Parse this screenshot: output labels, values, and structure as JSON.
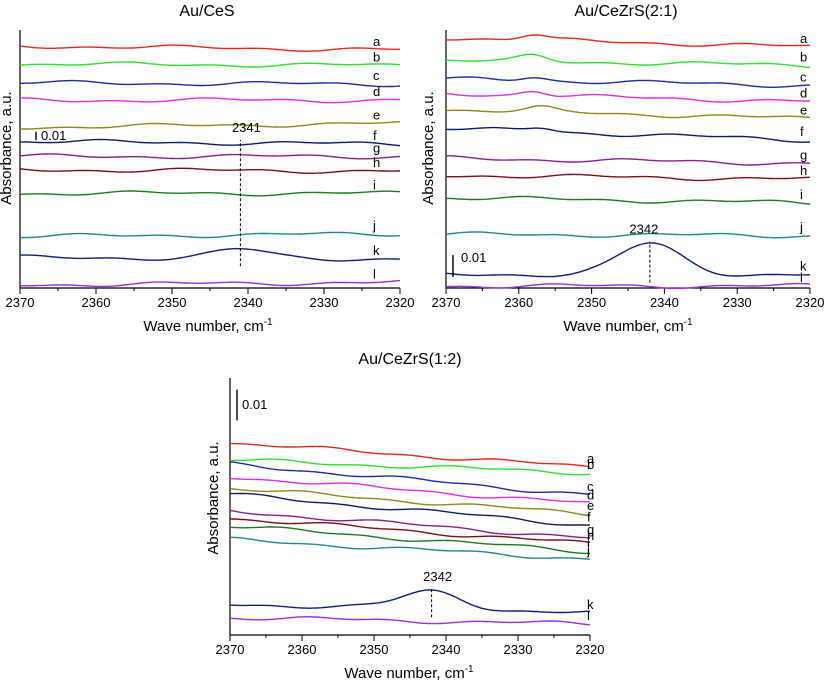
{
  "chart_data": [
    {
      "type": "line",
      "title": "Au/CeS",
      "xlabel": "Wave number, cm",
      "xlabel_sup": "-1",
      "ylabel": "Absorbance, a.u.",
      "xlim": [
        2370,
        2320
      ],
      "xticks": [
        "2370",
        "2360",
        "2350",
        "2340",
        "2330",
        "2320"
      ],
      "ylim": [
        0,
        1
      ],
      "scale_bar": {
        "label": "0.01",
        "value": 0.033
      },
      "annotation": {
        "label": "2341",
        "x": 2341,
        "on_series": "k"
      },
      "series": [
        {
          "name": "a",
          "color": "#e8261c",
          "offset": 0.938,
          "slope": -0.03,
          "features": []
        },
        {
          "name": "b",
          "color": "#2de02d",
          "offset": 0.868,
          "slope": -0.01,
          "features": []
        },
        {
          "name": "c",
          "color": "#1b2ca8",
          "offset": 0.795,
          "slope": -0.01,
          "features": []
        },
        {
          "name": "d",
          "color": "#e02de0",
          "offset": 0.728,
          "slope": 0.0,
          "features": []
        },
        {
          "name": "e",
          "color": "#8a8a1a",
          "offset": 0.623,
          "slope": 0.03,
          "features": []
        },
        {
          "name": "f",
          "color": "#0f1a6e",
          "offset": 0.568,
          "slope": -0.02,
          "features": []
        },
        {
          "name": "g",
          "color": "#8a1f8a",
          "offset": 0.51,
          "slope": 0.0,
          "features": []
        },
        {
          "name": "h",
          "color": "#7a1111",
          "offset": 0.458,
          "slope": -0.01,
          "features": []
        },
        {
          "name": "i",
          "color": "#1f7a1f",
          "offset": 0.367,
          "slope": 0.0,
          "features": []
        },
        {
          "name": "j",
          "color": "#1a8a8a",
          "offset": 0.2,
          "slope": 0.02,
          "features": []
        },
        {
          "name": "k",
          "color": "#101d80",
          "offset": 0.118,
          "slope": -0.01,
          "features": [
            {
              "center": 2341,
              "height": 0.035,
              "width": 5
            }
          ]
        },
        {
          "name": "l",
          "color": "#9a2de0",
          "offset": 0.012,
          "slope": 0.02,
          "features": []
        }
      ]
    },
    {
      "type": "line",
      "title": "Au/CeZrS(2:1)",
      "xlabel": "Wave number, cm",
      "xlabel_sup": "-1",
      "ylabel": "Absorbance, a.u.",
      "xlim": [
        2370,
        2320
      ],
      "xticks": [
        "2370",
        "2360",
        "2350",
        "2340",
        "2330",
        "2320"
      ],
      "ylim": [
        0,
        1
      ],
      "scale_bar": {
        "label": "0.01",
        "value": 0.085
      },
      "annotation": {
        "label": "2342",
        "x": 2342,
        "on_series": "k"
      },
      "series": [
        {
          "name": "a",
          "color": "#e8261c",
          "offset": 0.97,
          "slope": -0.07,
          "features": [
            {
              "center": 2358,
              "height": 0.02,
              "width": 2.5
            }
          ]
        },
        {
          "name": "b",
          "color": "#2de02d",
          "offset": 0.883,
          "slope": -0.04,
          "features": [
            {
              "center": 2358,
              "height": 0.02,
              "width": 2.5
            }
          ]
        },
        {
          "name": "c",
          "color": "#1b2ca8",
          "offset": 0.81,
          "slope": -0.05,
          "features": [
            {
              "center": 2358,
              "height": 0.015,
              "width": 2.5
            }
          ]
        },
        {
          "name": "d",
          "color": "#e02de0",
          "offset": 0.753,
          "slope": -0.06,
          "features": [
            {
              "center": 2358,
              "height": 0.02,
              "width": 2.5
            }
          ]
        },
        {
          "name": "e",
          "color": "#8a8a1a",
          "offset": 0.692,
          "slope": -0.07,
          "features": [
            {
              "center": 2357,
              "height": 0.015,
              "width": 2.5
            }
          ]
        },
        {
          "name": "f",
          "color": "#0f1a6e",
          "offset": 0.618,
          "slope": -0.09,
          "features": [
            {
              "center": 2357,
              "height": 0.015,
              "width": 2.5
            }
          ]
        },
        {
          "name": "g",
          "color": "#8a1f8a",
          "offset": 0.503,
          "slope": -0.04,
          "features": []
        },
        {
          "name": "h",
          "color": "#7a1111",
          "offset": 0.437,
          "slope": -0.03,
          "features": []
        },
        {
          "name": "i",
          "color": "#1f7a1f",
          "offset": 0.35,
          "slope": -0.04,
          "features": []
        },
        {
          "name": "j",
          "color": "#1a8a8a",
          "offset": 0.208,
          "slope": -0.01,
          "features": []
        },
        {
          "name": "k",
          "color": "#101d80",
          "offset": 0.052,
          "slope": 0.0,
          "features": [
            {
              "center": 2342,
              "height": 0.12,
              "width": 6
            }
          ]
        },
        {
          "name": "l",
          "color": "#9a2de0",
          "offset": 0.008,
          "slope": 0.0,
          "features": []
        }
      ]
    },
    {
      "type": "line",
      "title": "Au/CeZrS(1:2)",
      "xlabel": "Wave number, cm",
      "xlabel_sup": "-1",
      "ylabel": "Absorbance, a.u.",
      "xlim": [
        2370,
        2320
      ],
      "xticks": [
        "2370",
        "2360",
        "2350",
        "2340",
        "2330",
        "2320"
      ],
      "ylim": [
        0,
        1
      ],
      "scale_bar": {
        "label": "0.01",
        "value": 0.12
      },
      "annotation": {
        "label": "2342",
        "x": 2342,
        "on_series": "k"
      },
      "series": [
        {
          "name": "a",
          "color": "#e8261c",
          "offset": 0.748,
          "slope": -0.19,
          "features": []
        },
        {
          "name": "b",
          "color": "#2de02d",
          "offset": 0.681,
          "slope": -0.1,
          "features": []
        },
        {
          "name": "c",
          "color": "#1b2ca8",
          "offset": 0.665,
          "slope": -0.24,
          "features": []
        },
        {
          "name": "d",
          "color": "#e02de0",
          "offset": 0.616,
          "slope": -0.21,
          "features": []
        },
        {
          "name": "e",
          "color": "#8a8a1a",
          "offset": 0.571,
          "slope": -0.2,
          "features": []
        },
        {
          "name": "f",
          "color": "#0f1a6e",
          "offset": 0.547,
          "slope": -0.24,
          "features": []
        },
        {
          "name": "g",
          "color": "#8a1f8a",
          "offset": 0.482,
          "slope": -0.21,
          "features": []
        },
        {
          "name": "h",
          "color": "#7a1111",
          "offset": 0.455,
          "slope": -0.2,
          "features": []
        },
        {
          "name": "i",
          "color": "#1f7a1f",
          "offset": 0.424,
          "slope": -0.2,
          "features": []
        },
        {
          "name": "j",
          "color": "#1a8a8a",
          "offset": 0.371,
          "slope": -0.15,
          "features": []
        },
        {
          "name": "k",
          "color": "#101d80",
          "offset": 0.12,
          "slope": -0.07,
          "features": [
            {
              "center": 2342,
              "height": 0.07,
              "width": 6
            }
          ]
        },
        {
          "name": "l",
          "color": "#9a2de0",
          "offset": 0.068,
          "slope": -0.05,
          "features": []
        }
      ]
    }
  ]
}
